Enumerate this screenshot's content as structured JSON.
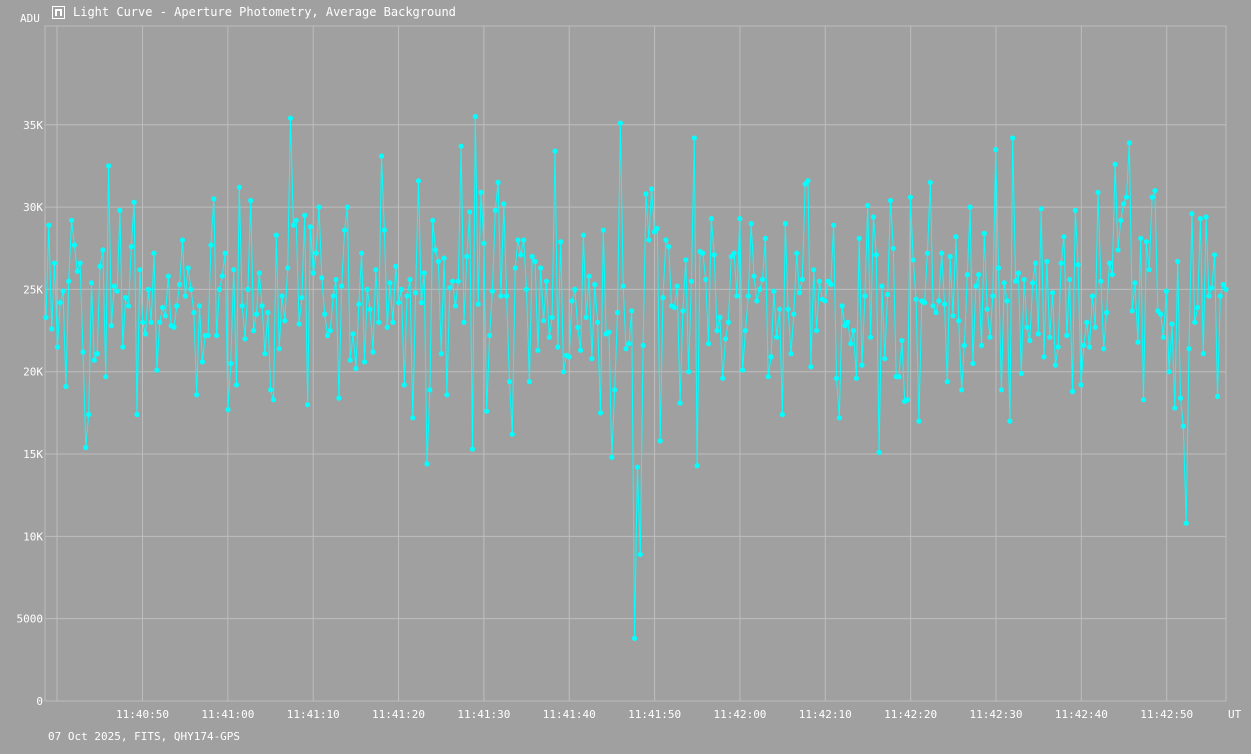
{
  "window": {
    "title": "Light Curve - Aperture Photometry, Average Background",
    "icon": "chart-app-icon"
  },
  "footer": {
    "text": "07 Oct 2025, FITS, QHY174-GPS"
  },
  "colors": {
    "background": "#a0a0a0",
    "grid": "#bdbdbd",
    "series": "#00ffff",
    "text": "#ffffff"
  },
  "chart_data": {
    "type": "line",
    "ylabel": "ADU",
    "xlabel": "UT",
    "ylim": [
      0,
      41000
    ],
    "grid": true,
    "y_ticks": [
      {
        "value": 0,
        "label": "0"
      },
      {
        "value": 5000,
        "label": "5000"
      },
      {
        "value": 10000,
        "label": "10K"
      },
      {
        "value": 15000,
        "label": "15K"
      },
      {
        "value": 20000,
        "label": "20K"
      },
      {
        "value": 25000,
        "label": "25K"
      },
      {
        "value": 30000,
        "label": "30K"
      },
      {
        "value": 35000,
        "label": "35K"
      }
    ],
    "x_ticks": [
      "11:40:50",
      "11:41:00",
      "11:41:10",
      "11:41:20",
      "11:41:30",
      "11:41:40",
      "11:41:50",
      "11:42:00",
      "11:42:10",
      "11:42:20",
      "11:42:30",
      "11:42:40",
      "11:42:50"
    ],
    "series": [
      {
        "color": "#00ffff",
        "values": [
          23300,
          28900,
          22600,
          26600,
          21500,
          24200,
          24900,
          19100,
          25500,
          29200,
          27700,
          26100,
          26600,
          21200,
          15400,
          17400,
          25400,
          20700,
          21100,
          26400,
          27400,
          19700,
          32500,
          22800,
          25200,
          24900,
          29800,
          21500,
          24500,
          24000,
          27600,
          30300,
          17400,
          26200,
          23000,
          22300,
          25000,
          23000,
          27200,
          20100,
          23000,
          23900,
          23400,
          25800,
          22800,
          22700,
          24000,
          25300,
          28000,
          24600,
          26300,
          25000,
          23600,
          18600,
          24000,
          20600,
          22200,
          22200,
          27700,
          30500,
          22200,
          25000,
          25800,
          27200,
          17700,
          20500,
          26200,
          19200,
          31200,
          24000,
          22000,
          25000,
          30400,
          22500,
          23500,
          26000,
          24000,
          21100,
          23600,
          18900,
          18300,
          28300,
          21400,
          24600,
          23100,
          26300,
          35400,
          28900,
          29200,
          22900,
          24500,
          29500,
          18000,
          28800,
          26000,
          27200,
          30000,
          25700,
          23500,
          22200,
          22500,
          24600,
          25600,
          18400,
          25200,
          28600,
          30000,
          20700,
          22300,
          20200,
          24100,
          27200,
          20600,
          25000,
          23800,
          21200,
          26200,
          23000,
          33100,
          28600,
          22700,
          25400,
          23000,
          26400,
          24200,
          25000,
          19200,
          24600,
          25600,
          17200,
          24800,
          31600,
          24200,
          26000,
          14400,
          18900,
          29200,
          27400,
          26700,
          21100,
          26900,
          18600,
          25100,
          25500,
          24000,
          25500,
          33700,
          23000,
          27000,
          29700,
          15300,
          35500,
          24100,
          30900,
          27800,
          17600,
          22200,
          24900,
          29800,
          31500,
          24600,
          30200,
          24600,
          19400,
          16200,
          26300,
          28000,
          27100,
          28000,
          25000,
          19400,
          27000,
          26700,
          21300,
          26300,
          23100,
          25500,
          22100,
          23300,
          33400,
          21500,
          27900,
          20000,
          21000,
          20900,
          24300,
          25000,
          22700,
          21300,
          28300,
          23300,
          25800,
          20800,
          25300,
          23000,
          17500,
          28600,
          22300,
          22400,
          14800,
          18900,
          23600,
          35100,
          25200,
          21400,
          21700,
          23700,
          3800,
          14200,
          8900,
          21600,
          30800,
          28000,
          31100,
          28500,
          28700,
          15800,
          24500,
          28000,
          27600,
          24000,
          23900,
          25200,
          18100,
          23700,
          26800,
          20000,
          25500,
          34200,
          14300,
          27300,
          27200,
          25600,
          21700,
          29300,
          27100,
          22500,
          23300,
          19600,
          22000,
          23000,
          27000,
          27200,
          24600,
          29300,
          20100,
          22500,
          24600,
          29000,
          25800,
          24300,
          25000,
          25600,
          28100,
          19700,
          20900,
          24900,
          22100,
          23800,
          17400,
          29000,
          23800,
          21100,
          23500,
          27200,
          24800,
          25600,
          31400,
          31600,
          20300,
          26200,
          22500,
          25500,
          24400,
          24300,
          25500,
          25300,
          28900,
          19600,
          17200,
          24000,
          22800,
          23000,
          21700,
          22500,
          19600,
          28100,
          20400,
          24600,
          30100,
          22100,
          29400,
          27100,
          15100,
          25200,
          20800,
          24700,
          30400,
          27500,
          19700,
          19700,
          21900,
          18200,
          18300,
          30600,
          26800,
          24400,
          17000,
          24300,
          24200,
          27200,
          31500,
          24000,
          23600,
          24300,
          27200,
          24100,
          19400,
          27000,
          23400,
          28200,
          23100,
          18900,
          21600,
          25900,
          30000,
          20500,
          25200,
          25900,
          21600,
          28400,
          23800,
          22100,
          24600,
          33500,
          26300,
          18900,
          25400,
          24300,
          17000,
          34200,
          25500,
          26000,
          19900,
          25600,
          22700,
          21900,
          25400,
          26600,
          22300,
          29900,
          20900,
          26700,
          22100,
          24800,
          20400,
          21500,
          26600,
          28200,
          22200,
          25600,
          18800,
          29800,
          26500,
          19200,
          21600,
          23000,
          21500,
          24600,
          22700,
          30900,
          25500,
          21400,
          23600,
          26600,
          25900,
          32600,
          27400,
          29200,
          30200,
          30600,
          33900,
          23700,
          25400,
          21800,
          28100,
          18300,
          27900,
          26200,
          30600,
          31000,
          23700,
          23500,
          22100,
          24900,
          20000,
          22900,
          17800,
          26700,
          18400,
          16700,
          10800,
          21400,
          29600,
          23000,
          23900,
          29300,
          21100,
          29400,
          24600,
          25100,
          27100,
          18500,
          24600,
          25300,
          25000
        ]
      }
    ]
  }
}
